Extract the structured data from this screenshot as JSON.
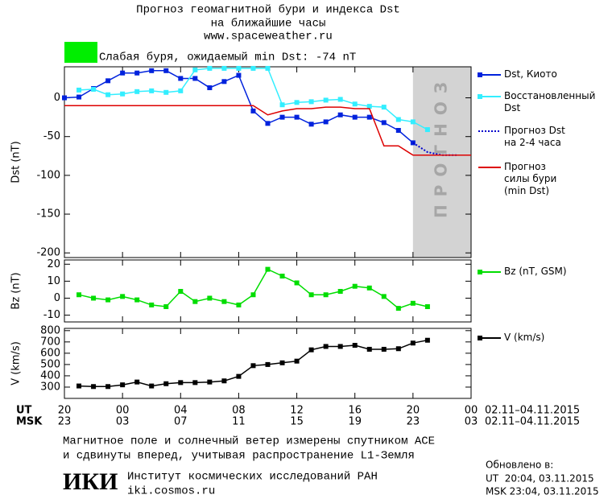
{
  "header": {
    "title": "Прогноз геомагнитной бури и индекса Dst",
    "subtitle": "на ближайшие часы",
    "url": "www.spaceweather.ru"
  },
  "status": {
    "text": "Слабая буря, ожидаемый min Dst: -74 nT",
    "color": "#00ee00"
  },
  "chart_data": [
    {
      "type": "line",
      "ylabel": "Dst (nT)",
      "xlim": [
        0,
        28
      ],
      "ylim": [
        -206,
        40
      ],
      "yticks": [
        -200,
        -150,
        -100,
        -50,
        0
      ],
      "region": {
        "x": [
          24,
          28
        ],
        "label": "ПРОГНОЗ",
        "color": "#d3d3d3"
      },
      "series": [
        {
          "name": "Dst, Киото",
          "color": "#0022dd",
          "marker": "square",
          "x": [
            0,
            1,
            2,
            3,
            4,
            5,
            6,
            7,
            8,
            9,
            10,
            11,
            12,
            13,
            14,
            15,
            16,
            17,
            18,
            19,
            20,
            21,
            22,
            23,
            24
          ],
          "values": [
            0,
            1,
            12,
            22,
            32,
            32,
            35,
            35,
            25,
            25,
            13,
            21,
            29,
            -17,
            -33,
            -25,
            -25,
            -34,
            -31,
            -22,
            -25,
            -25,
            -32,
            -42,
            -58
          ]
        },
        {
          "name": "Восстановленный\nDst",
          "color": "#33eeff",
          "marker": "square",
          "x": [
            1,
            2,
            3,
            4,
            5,
            6,
            7,
            8,
            9,
            10,
            11,
            12,
            13,
            14,
            15,
            16,
            17,
            18,
            19,
            20,
            21,
            22,
            23,
            24,
            25
          ],
          "values": [
            10,
            11,
            4,
            5,
            8,
            9,
            7,
            9,
            36,
            38,
            38,
            38,
            38,
            38,
            -9,
            -6,
            -5,
            -3,
            -2,
            -8,
            -11,
            -12,
            -28,
            -31,
            -41
          ]
        },
        {
          "name": "Прогноз Dst\nна 2-4 часа",
          "color": "#0000cc",
          "dash": true,
          "x": [
            24,
            25,
            26,
            27
          ],
          "values": [
            -58,
            -70,
            -74,
            -74
          ]
        },
        {
          "name": "Прогноз\nсилы бури\n(min Dst)",
          "color": "#dd0000",
          "x": [
            0,
            13,
            14,
            15,
            16,
            17,
            18,
            19,
            20,
            21,
            22,
            23,
            24,
            28
          ],
          "values": [
            -10,
            -10,
            -22,
            -17,
            -14,
            -14,
            -12,
            -12,
            -14,
            -14,
            -62,
            -62,
            -74,
            -74
          ]
        }
      ]
    },
    {
      "type": "line",
      "ylabel": "Bz (nT)",
      "xlim": [
        0,
        28
      ],
      "ylim": [
        -14,
        22.5
      ],
      "yticks": [
        -10,
        0,
        10,
        20
      ],
      "series": [
        {
          "name": "Bz (nT, GSM)",
          "color": "#00dd00",
          "marker": "square",
          "x": [
            1,
            2,
            3,
            4,
            5,
            6,
            7,
            8,
            9,
            10,
            11,
            12,
            13,
            14,
            15,
            16,
            17,
            18,
            19,
            20,
            21,
            22,
            23,
            24,
            25
          ],
          "values": [
            2,
            0,
            -1,
            1,
            -1,
            -4,
            -5,
            4,
            -2,
            0,
            -2,
            -4,
            2,
            17,
            13,
            9,
            2,
            2,
            4,
            7,
            6,
            1,
            -6,
            -3,
            -5
          ]
        }
      ]
    },
    {
      "type": "line",
      "ylabel": "V (km/s)",
      "xlim": [
        0,
        28
      ],
      "ylim": [
        200,
        820
      ],
      "yticks": [
        300,
        400,
        500,
        600,
        700,
        800
      ],
      "xticks": [
        {
          "value": 0,
          "label": "20"
        },
        {
          "value": 4,
          "label": "00"
        },
        {
          "value": 8,
          "label": "04"
        },
        {
          "value": 12,
          "label": "08"
        },
        {
          "value": 16,
          "label": "12"
        },
        {
          "value": 20,
          "label": "16"
        },
        {
          "value": 24,
          "label": "20"
        },
        {
          "value": 28,
          "label": "00"
        }
      ],
      "msk_tick_labels": [
        "23",
        "03",
        "07",
        "11",
        "15",
        "19",
        "23",
        "03"
      ],
      "xlabel_ut": "UT",
      "xlabel_msk": "MSK",
      "date_range_ut": "02.11–04.11.2015",
      "date_range_msk": "02.11–04.11.2015",
      "series": [
        {
          "name": "V (km/s)",
          "color": "#000000",
          "marker": "square",
          "x": [
            1,
            2,
            3,
            4,
            5,
            6,
            7,
            8,
            9,
            10,
            11,
            12,
            13,
            14,
            15,
            16,
            17,
            18,
            19,
            20,
            21,
            22,
            23,
            24,
            25
          ],
          "values": [
            310,
            305,
            305,
            320,
            345,
            310,
            330,
            340,
            340,
            345,
            355,
            395,
            490,
            500,
            515,
            530,
            630,
            660,
            660,
            670,
            635,
            635,
            640,
            690,
            715
          ]
        }
      ]
    }
  ],
  "footer": {
    "note": [
      "Магнитное поле и солнечный ветер измерены спутником ACE",
      "и сдвинуты вперед, учитывая распространение L1-Земля"
    ],
    "logo": "ИКИ",
    "institute": "Институт космических исследований РАН",
    "site": "iki.cosmos.ru",
    "updated_label": "Обновлено в:",
    "updated_ut": "UT  20:04, 03.11.2015",
    "updated_msk": "MSK 23:04, 03.11.2015"
  }
}
